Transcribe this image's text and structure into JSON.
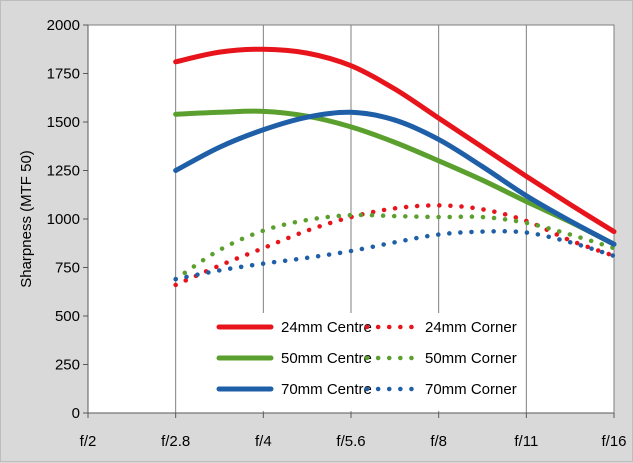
{
  "chart_data": {
    "type": "line",
    "title": "",
    "xlabel": "",
    "ylabel": "Sharpness (MTF 50)",
    "categories": [
      "f/2",
      "f/2.8",
      "f/4",
      "f/5.6",
      "f/8",
      "f/11",
      "f/16"
    ],
    "ylim": [
      0,
      2000
    ],
    "yticks": [
      0,
      250,
      500,
      750,
      1000,
      1250,
      1500,
      1750,
      2000
    ],
    "grid": "vertical",
    "legend_position": "bottom-center",
    "series": [
      {
        "name": "24mm Centre",
        "style": "solid",
        "color": "#e8141b",
        "x": [
          1,
          1.5,
          2,
          2.5,
          3,
          3.5,
          4,
          4.5,
          5,
          5.5,
          6
        ],
        "values": [
          1810,
          1860,
          1875,
          1855,
          1790,
          1670,
          1520,
          1370,
          1220,
          1075,
          935
        ]
      },
      {
        "name": "50mm Centre",
        "style": "solid",
        "color": "#5ba02e",
        "x": [
          1,
          1.5,
          2,
          2.5,
          3,
          3.5,
          4,
          4.5,
          5,
          5.5,
          6
        ],
        "values": [
          1540,
          1550,
          1555,
          1530,
          1475,
          1395,
          1300,
          1200,
          1090,
          985,
          870
        ]
      },
      {
        "name": "70mm Centre",
        "style": "solid",
        "color": "#1f5fa8",
        "x": [
          1,
          1.5,
          2,
          2.5,
          3,
          3.5,
          4,
          4.5,
          5,
          5.5,
          6
        ],
        "values": [
          1250,
          1370,
          1460,
          1525,
          1550,
          1510,
          1410,
          1270,
          1120,
          990,
          870
        ]
      },
      {
        "name": "24mm Corner",
        "style": "dotted",
        "color": "#e8141b",
        "x": [
          1,
          1.5,
          2,
          2.5,
          3,
          3.5,
          4,
          4.5,
          5,
          5.5,
          6
        ],
        "values": [
          660,
          760,
          850,
          940,
          1010,
          1055,
          1070,
          1050,
          990,
          890,
          810
        ]
      },
      {
        "name": "50mm Corner",
        "style": "dotted",
        "color": "#5ba02e",
        "x": [
          1,
          1.5,
          2,
          2.5,
          3,
          3.5,
          4,
          4.5,
          5,
          5.5,
          6
        ],
        "values": [
          690,
          840,
          940,
          995,
          1020,
          1015,
          1010,
          1010,
          980,
          920,
          850
        ]
      },
      {
        "name": "70mm Corner",
        "style": "dotted",
        "color": "#1f5fa8",
        "x": [
          1,
          1.5,
          2,
          2.5,
          3,
          3.5,
          4,
          4.5,
          5,
          5.5,
          6
        ],
        "values": [
          690,
          735,
          770,
          800,
          835,
          880,
          920,
          935,
          930,
          880,
          810
        ]
      }
    ]
  },
  "colors": {
    "background": "#d9d9d9",
    "plot_background": "#ffffff",
    "grid": "#7f7f7f"
  }
}
